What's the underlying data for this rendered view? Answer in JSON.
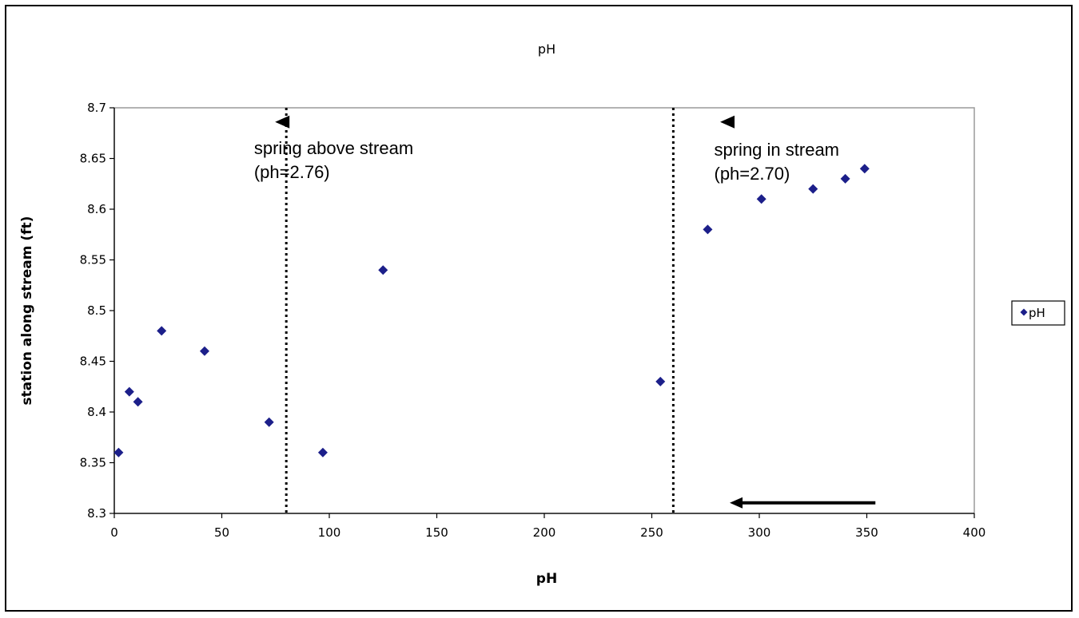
{
  "chart_data": {
    "type": "scatter",
    "title": "pH",
    "xlabel": "pH",
    "ylabel": "station along stream (ft)",
    "xlim": [
      0,
      400
    ],
    "ylim": [
      8.3,
      8.7
    ],
    "x_ticks": [
      "0",
      "50",
      "100",
      "150",
      "200",
      "250",
      "300",
      "350",
      "400"
    ],
    "y_ticks": [
      "8.3",
      "8.35",
      "8.4",
      "8.45",
      "8.5",
      "8.55",
      "8.6",
      "8.65",
      "8.7"
    ],
    "grid": false,
    "legend_position": "right",
    "series": [
      {
        "name": "pH",
        "color": "#1c1f8a",
        "marker": "diamond",
        "points": [
          {
            "x": 2,
            "y": 8.36
          },
          {
            "x": 7,
            "y": 8.42
          },
          {
            "x": 11,
            "y": 8.41
          },
          {
            "x": 22,
            "y": 8.48
          },
          {
            "x": 42,
            "y": 8.46
          },
          {
            "x": 72,
            "y": 8.39
          },
          {
            "x": 97,
            "y": 8.36
          },
          {
            "x": 125,
            "y": 8.54
          },
          {
            "x": 254,
            "y": 8.43
          },
          {
            "x": 276,
            "y": 8.58
          },
          {
            "x": 301,
            "y": 8.61
          },
          {
            "x": 325,
            "y": 8.62
          },
          {
            "x": 340,
            "y": 8.63
          },
          {
            "x": 349,
            "y": 8.64
          }
        ]
      }
    ],
    "reference_lines": [
      {
        "x": 80,
        "style": "dotted"
      },
      {
        "x": 260,
        "style": "dotted"
      }
    ],
    "annotations": [
      {
        "line1": "spring above stream",
        "line2": "(ph=2.76)",
        "marker_x": 80
      },
      {
        "line1": "spring in stream",
        "line2": "(ph=2.70)",
        "marker_x": 287
      }
    ],
    "flow_arrow": {
      "from_x": 354,
      "to_x": 287,
      "y": 8.31
    }
  }
}
